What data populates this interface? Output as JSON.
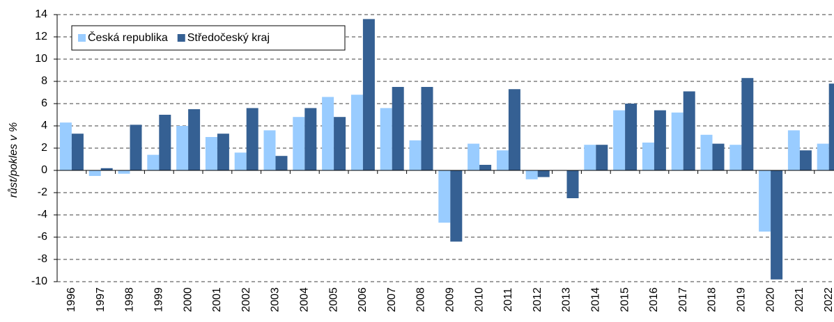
{
  "chart_data": {
    "type": "bar",
    "y_label": "růst/pokles v %",
    "categories": [
      "1996",
      "1997",
      "1998",
      "1999",
      "2000",
      "2001",
      "2002",
      "2003",
      "2004",
      "2005",
      "2006",
      "2007",
      "2008",
      "2009",
      "2010",
      "2011",
      "2012",
      "2013",
      "2014",
      "2015",
      "2016",
      "2017",
      "2018",
      "2019",
      "2020",
      "2021",
      "2022"
    ],
    "series": [
      {
        "name": "Česká republika",
        "color": "#99ccff",
        "values": [
          4.3,
          -0.5,
          -0.3,
          1.4,
          4.0,
          3.0,
          1.6,
          3.6,
          4.8,
          6.6,
          6.8,
          5.6,
          2.7,
          -4.7,
          2.4,
          1.8,
          -0.8,
          0,
          2.3,
          5.4,
          2.5,
          5.2,
          3.2,
          2.3,
          -5.5,
          3.6,
          2.4
        ]
      },
      {
        "name": "Středočeský kraj",
        "color": "#356093",
        "values": [
          3.3,
          0.2,
          4.1,
          5.0,
          5.5,
          3.3,
          5.6,
          1.3,
          5.6,
          4.8,
          13.6,
          7.5,
          7.5,
          -6.4,
          0.5,
          7.3,
          -0.6,
          -2.5,
          2.3,
          6.0,
          5.4,
          7.1,
          2.4,
          8.3,
          -9.8,
          1.8,
          7.8
        ]
      }
    ],
    "ylim": [
      -10,
      14
    ],
    "yticks": [
      -10,
      -8,
      -6,
      -4,
      -2,
      0,
      2,
      4,
      6,
      8,
      10,
      12,
      14
    ],
    "grid": true,
    "legend": "top-left"
  }
}
